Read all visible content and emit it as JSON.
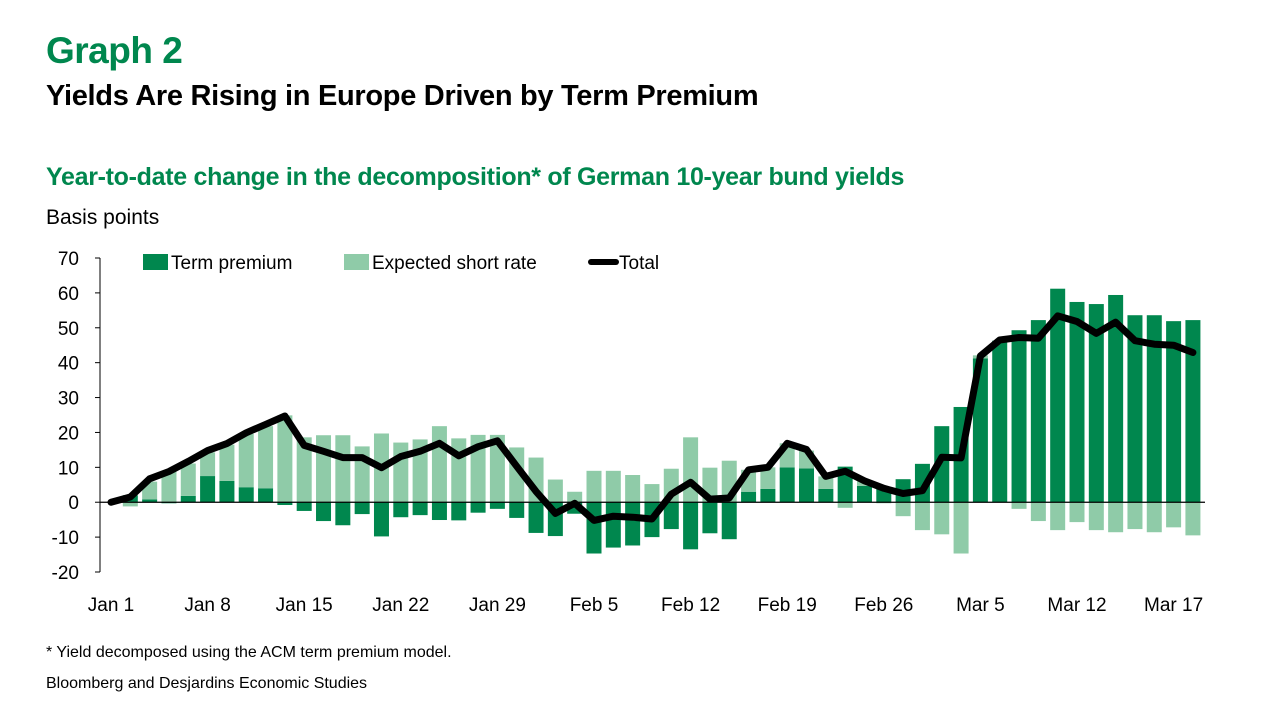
{
  "header": {
    "graph_number": "Graph 2",
    "title": "Yields Are Rising in Europe Driven by Term Premium"
  },
  "footer": {
    "note": "* Yield decomposed using the ACM term premium model.",
    "source": "Bloomberg and Desjardins Economic Studies"
  },
  "colors": {
    "term_premium": "#00874e",
    "expected_short_rate": "#8fcba8",
    "total": "#000000",
    "accent": "#00874e"
  },
  "chart_data": {
    "type": "bar",
    "stacked": true,
    "title": "Year-to-date change in the decomposition* of German 10-year bund yields",
    "ylabel": "Basis points",
    "xlabel": "",
    "ylim": [
      -20,
      70
    ],
    "yticks": [
      70,
      60,
      50,
      40,
      30,
      20,
      10,
      0,
      -10,
      -20
    ],
    "grid": false,
    "legend_position": "top",
    "x_tick_labels": [
      {
        "index": 0,
        "label": "Jan 1"
      },
      {
        "index": 5,
        "label": "Jan 8"
      },
      {
        "index": 10,
        "label": "Jan 15"
      },
      {
        "index": 15,
        "label": "Jan 22"
      },
      {
        "index": 20,
        "label": "Jan 29"
      },
      {
        "index": 25,
        "label": "Feb 5"
      },
      {
        "index": 30,
        "label": "Feb 12"
      },
      {
        "index": 35,
        "label": "Feb 19"
      },
      {
        "index": 40,
        "label": "Feb 26"
      },
      {
        "index": 45,
        "label": "Mar 5"
      },
      {
        "index": 50,
        "label": "Mar 12"
      },
      {
        "index": 55,
        "label": "Mar 17"
      }
    ],
    "n_points": 57,
    "series": [
      {
        "name": "Term premium",
        "kind": "bar",
        "values": [
          0,
          2.0,
          0.8,
          -0.3,
          1.8,
          7.5,
          6.1,
          4.3,
          4.0,
          -0.8,
          -2.5,
          -5.4,
          -6.6,
          -3.4,
          -9.8,
          -4.3,
          -3.7,
          -5.1,
          -5.2,
          -3.0,
          -1.9,
          -4.5,
          -8.8,
          -9.7,
          -3.3,
          -14.7,
          -13.0,
          -12.4,
          -10.0,
          -7.7,
          -13.5,
          -8.9,
          -10.6,
          3.0,
          3.8,
          10.0,
          9.7,
          3.8,
          10.2,
          4.7,
          4.3,
          6.6,
          11.0,
          21.8,
          27.3,
          41.2,
          46.3,
          49.3,
          52.2,
          61.2,
          57.4,
          56.8,
          59.4,
          53.6,
          53.6,
          51.9,
          52.2
        ]
      },
      {
        "name": "Expected short rate",
        "kind": "bar",
        "values": [
          0,
          -1.2,
          5.1,
          8.8,
          9.3,
          6.8,
          10.4,
          15.3,
          17.8,
          24.9,
          18.6,
          19.2,
          19.2,
          16.0,
          19.7,
          17.1,
          18.0,
          21.8,
          18.3,
          19.3,
          19.3,
          15.7,
          12.8,
          6.5,
          3.0,
          9.0,
          9.0,
          7.8,
          5.2,
          9.6,
          18.6,
          9.9,
          11.9,
          6.3,
          6.2,
          6.9,
          5.1,
          3.6,
          -1.6,
          1.3,
          -0.3,
          -4.0,
          -8.0,
          -9.2,
          -14.7,
          0.9,
          0.0,
          -1.9,
          -5.4,
          -8.0,
          -5.7,
          -8.0,
          -8.6,
          -7.7,
          -8.6,
          -7.2,
          -9.5
        ]
      },
      {
        "name": "Total",
        "kind": "line",
        "values": [
          0,
          1.5,
          6.7,
          8.8,
          11.7,
          14.8,
          16.8,
          19.9,
          22.3,
          24.7,
          16.3,
          14.6,
          12.8,
          12.8,
          9.9,
          13.1,
          14.6,
          16.9,
          13.3,
          15.9,
          17.6,
          10.3,
          3.1,
          -3.2,
          -0.3,
          -5.2,
          -4.0,
          -4.3,
          -4.8,
          2.3,
          5.7,
          0.9,
          1.2,
          9.3,
          10.0,
          16.9,
          15.1,
          7.4,
          8.9,
          6.1,
          4.0,
          2.5,
          3.3,
          12.9,
          12.7,
          41.9,
          46.5,
          47.2,
          47.0,
          53.4,
          51.8,
          48.4,
          51.6,
          46.3,
          45.3,
          45.0,
          42.9
        ]
      }
    ]
  }
}
